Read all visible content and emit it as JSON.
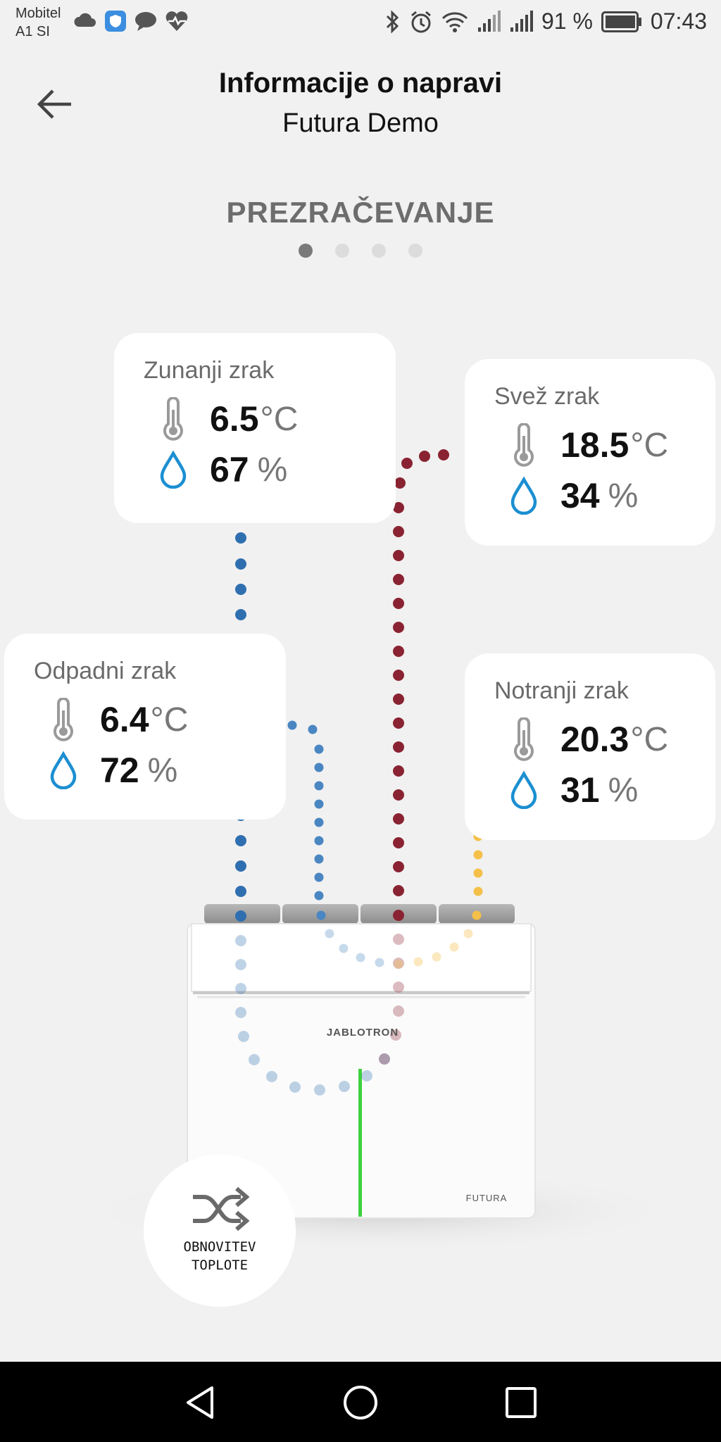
{
  "status_bar": {
    "carrier_line1": "Mobitel",
    "carrier_line2": "A1 SI",
    "battery_text": "91 %",
    "time": "07:43"
  },
  "header": {
    "title": "Informacije o napravi",
    "subtitle": "Futura Demo"
  },
  "section": {
    "title": "PREZRAČEVANJE",
    "page_count": 4,
    "active_page": 1
  },
  "device": {
    "brand": "JABLOTRON",
    "model": "FUTURA"
  },
  "cards": {
    "outdoor": {
      "label": "Zunanji zrak",
      "temperature": "6.5",
      "temp_unit": "°C",
      "humidity": "67",
      "humidity_unit": "%"
    },
    "fresh": {
      "label": "Svež zrak",
      "temperature": "18.5",
      "temp_unit": "°C",
      "humidity": "34",
      "humidity_unit": "%"
    },
    "exhaust": {
      "label": "Odpadni zrak",
      "temperature": "6.4",
      "temp_unit": "°C",
      "humidity": "72",
      "humidity_unit": "%"
    },
    "indoor": {
      "label": "Notranji zrak",
      "temperature": "20.3",
      "temp_unit": "°C",
      "humidity": "31",
      "humidity_unit": "%"
    }
  },
  "mode_button": {
    "line1": "OBNOVITEV",
    "line2": "TOPLOTE",
    "icon": "shuffle-icon"
  },
  "colors": {
    "outdoor_flow": "#2f6fb0",
    "exhaust_flow": "#4a86c2",
    "fresh_flow": "#8a2331",
    "indoor_flow": "#f5c04a",
    "humidity_icon": "#1b8fd1",
    "status_led": "#3fd13f"
  }
}
